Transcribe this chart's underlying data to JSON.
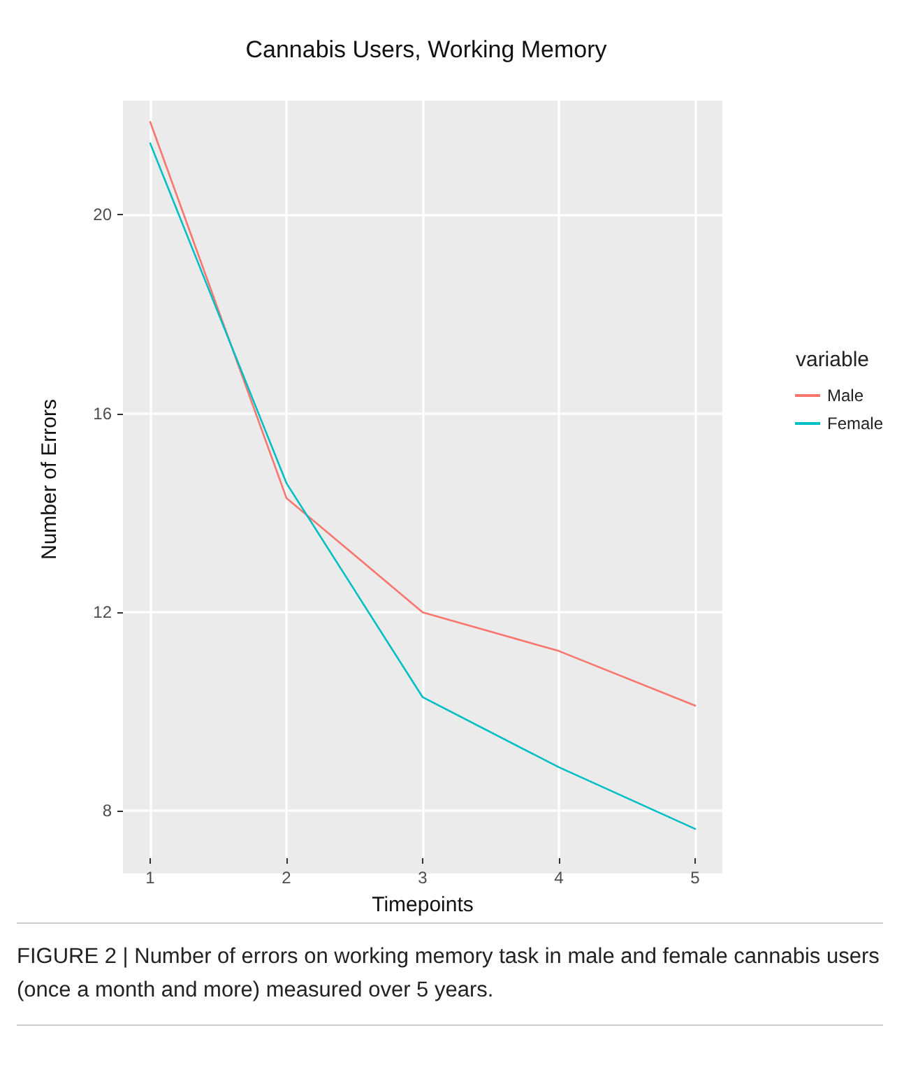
{
  "chart_data": {
    "type": "line",
    "title": "Cannabis Users, Working Memory",
    "xlabel": "Timepoints",
    "ylabel": "Number of Errors",
    "legend_title": "variable",
    "x": [
      1,
      2,
      3,
      4,
      5
    ],
    "series": [
      {
        "name": "Male",
        "color": "#f8766d",
        "values": [
          21.87,
          14.3,
          12.0,
          11.22,
          10.12
        ]
      },
      {
        "name": "Female",
        "color": "#00bfc4",
        "values": [
          21.44,
          14.6,
          10.29,
          8.88,
          7.64
        ]
      }
    ],
    "xlim": [
      0.8,
      5.2
    ],
    "xticks": [
      1,
      2,
      3,
      4,
      5
    ],
    "ylim": [
      7.05,
      22.3
    ],
    "yticks": [
      8,
      12,
      16,
      20
    ],
    "grid": true,
    "legend": "right",
    "marker": "none",
    "line_style": "solid",
    "annotations": [
      "FIGURE 2 | Number of errors on working memory task in male and female cannabis users (once a month and more) measured over 5 years."
    ]
  }
}
